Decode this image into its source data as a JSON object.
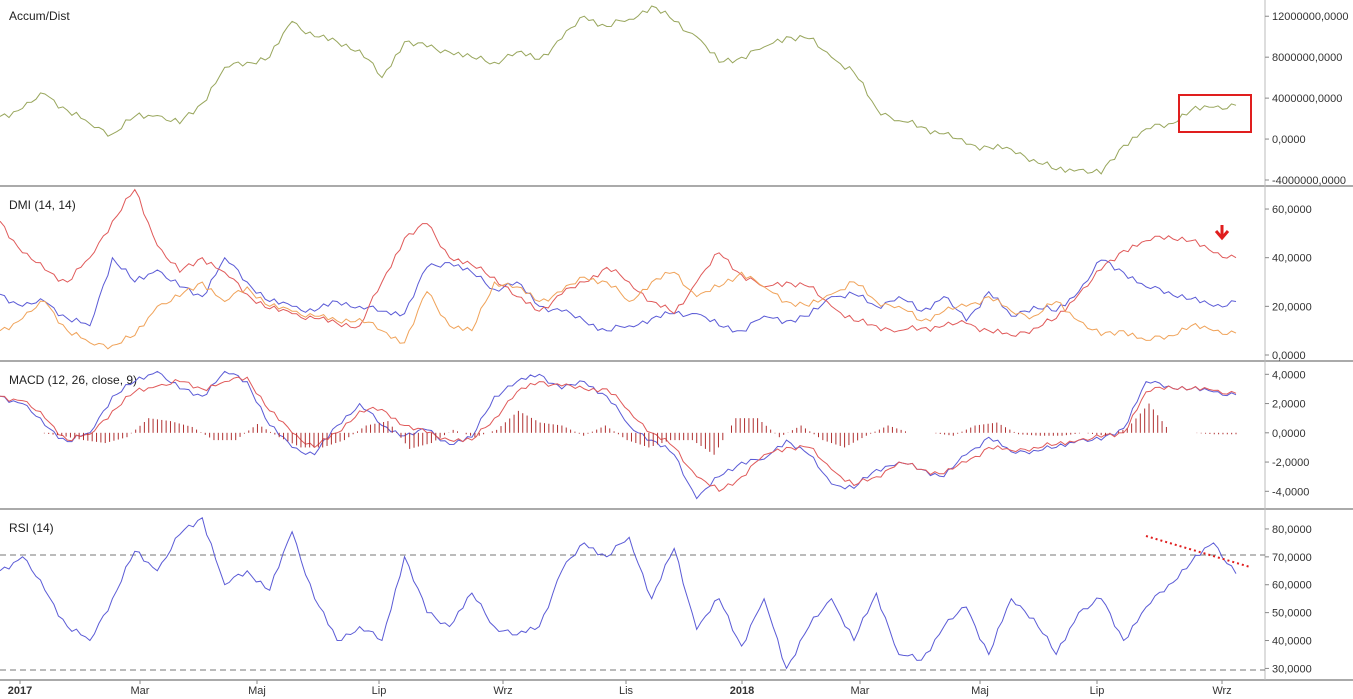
{
  "colors": {
    "accum": "#98a65c",
    "blue": "#5b5bd6",
    "red": "#e05a5a",
    "orange": "#f0a35a",
    "hist": "#b03030",
    "annotation": "#e01e1e",
    "separator": "#555555"
  },
  "x_labels": [
    {
      "text": "2017",
      "bold": true
    },
    {
      "text": "Mar",
      "bold": false
    },
    {
      "text": "Maj",
      "bold": false
    },
    {
      "text": "Lip",
      "bold": false
    },
    {
      "text": "Wrz",
      "bold": false
    },
    {
      "text": "Lis",
      "bold": false
    },
    {
      "text": "2018",
      "bold": true
    },
    {
      "text": "Mar",
      "bold": false
    },
    {
      "text": "Maj",
      "bold": false
    },
    {
      "text": "Lip",
      "bold": false
    },
    {
      "text": "Wrz",
      "bold": false
    }
  ],
  "chart_data": [
    {
      "type": "line",
      "title": "Accum/Dist",
      "ylim": [
        -4000000,
        13000000
      ],
      "yticks": [
        "12000000,0000",
        "8000000,0000",
        "4000000,0000",
        "0,0000",
        "-4000000,0000"
      ],
      "ytick_values": [
        12000000,
        8000000,
        4000000,
        0,
        -4000000
      ],
      "series": [
        {
          "color": "accum",
          "values": [
            2200000,
            3000000,
            4400000,
            2800000,
            1500000,
            500000,
            2200000,
            2300000,
            1500000,
            3500000,
            7000000,
            7500000,
            8000000,
            11500000,
            10000000,
            9500000,
            8700000,
            6000000,
            9500000,
            9000000,
            8500000,
            8000000,
            7500000,
            8500000,
            7800000,
            9800000,
            12000000,
            11000000,
            11700000,
            13000000,
            11500000,
            10000000,
            7500000,
            8000000,
            9000000,
            10000000,
            9800000,
            8000000,
            6500000,
            3000000,
            1800000,
            1200000,
            500000,
            -500000,
            -800000,
            -1000000,
            -2000000,
            -3000000,
            -3000000,
            -3400000,
            -600000,
            1000000,
            1500000,
            2800000,
            3100000,
            3300000
          ]
        }
      ]
    },
    {
      "type": "line",
      "title": "DMI (14, 14)",
      "ylim": [
        0,
        67000
      ],
      "yticks": [
        "60,0000",
        "40,0000",
        "20,0000",
        "0,0000"
      ],
      "ytick_values": [
        60000,
        40000,
        20000,
        0
      ],
      "series": [
        {
          "color": "blue",
          "values": [
            25000,
            20000,
            22000,
            15000,
            12000,
            40000,
            30000,
            35000,
            28000,
            24000,
            40000,
            30000,
            22000,
            20000,
            18000,
            22000,
            20000,
            18000,
            17000,
            36000,
            38000,
            34000,
            27000,
            30000,
            20000,
            18000,
            14000,
            10000,
            12000,
            15000,
            17000,
            17000,
            12000,
            10000,
            16000,
            14000,
            16000,
            24000,
            25000,
            20000,
            24000,
            18000,
            24000,
            14000,
            26000,
            16000,
            20000,
            18000,
            26000,
            39000,
            34000,
            28000,
            26000,
            23000,
            20000,
            22000
          ]
        },
        {
          "color": "red",
          "values": [
            55000,
            42000,
            35000,
            30000,
            40000,
            55000,
            68000,
            45000,
            34000,
            40000,
            34000,
            25000,
            19000,
            17000,
            15000,
            13000,
            12000,
            30000,
            48000,
            54000,
            40000,
            37000,
            32000,
            24000,
            18000,
            25000,
            30000,
            36000,
            30000,
            22000,
            17000,
            30000,
            42000,
            33000,
            28000,
            30000,
            28000,
            20000,
            14000,
            12000,
            10000,
            11000,
            12000,
            13000,
            10000,
            8000,
            11000,
            15000,
            25000,
            35000,
            43000,
            47000,
            49000,
            47000,
            42000,
            40000
          ]
        },
        {
          "color": "orange",
          "values": [
            10000,
            15000,
            22000,
            10000,
            5000,
            4000,
            8000,
            20000,
            24000,
            30000,
            22000,
            28000,
            20000,
            18000,
            16000,
            14000,
            15000,
            10000,
            5000,
            26000,
            12000,
            10000,
            30000,
            28000,
            22000,
            26000,
            32000,
            30000,
            22000,
            30000,
            34000,
            24000,
            28000,
            34000,
            28000,
            22000,
            20000,
            25000,
            30000,
            22000,
            20000,
            14000,
            18000,
            20000,
            24000,
            18000,
            16000,
            22000,
            14000,
            8000,
            10000,
            6000,
            8000,
            12000,
            10000,
            9000
          ]
        }
      ]
    },
    {
      "type": "line",
      "title": "MACD (12, 26, close, 9)",
      "ylim": [
        -4800,
        4500
      ],
      "yticks": [
        "4,0000",
        "2,0000",
        "0,0000",
        "-2,0000",
        "-4,0000"
      ],
      "ytick_values": [
        4000,
        2000,
        0,
        -2000,
        -4000
      ],
      "series": [
        {
          "color": "blue",
          "values": [
            2500,
            2000,
            500,
            -600,
            0,
            2500,
            3500,
            4200,
            3000,
            2500,
            4200,
            3500,
            500,
            -1000,
            -1500,
            500,
            2000,
            500,
            -200,
            200,
            -800,
            -300,
            2500,
            3500,
            4000,
            3000,
            3500,
            2500,
            500,
            -500,
            -1500,
            -4500,
            -3000,
            -2000,
            -1800,
            -500,
            -1500,
            -3500,
            -3800,
            -2500,
            -2000,
            -2500,
            -3000,
            -1500,
            -300,
            -1300,
            -1200,
            -1000,
            -500,
            -500,
            300,
            3500,
            3200,
            3000,
            2800,
            2600
          ]
        },
        {
          "color": "red",
          "values": [
            2500,
            2200,
            1000,
            -500,
            -100,
            1500,
            2800,
            3200,
            3500,
            3000,
            3500,
            3800,
            1500,
            0,
            -1000,
            0,
            1500,
            1600,
            500,
            0,
            -500,
            -500,
            1000,
            2800,
            3500,
            3200,
            3000,
            3000,
            1500,
            0,
            -1000,
            -3000,
            -4000,
            -3000,
            -1500,
            -1000,
            -1000,
            -2500,
            -3600,
            -3000,
            -2000,
            -2500,
            -2800,
            -2000,
            -1000,
            -1200,
            -1000,
            -800,
            -500,
            -300,
            0,
            2800,
            3200,
            3000,
            2900,
            2700
          ]
        },
        {
          "color": "hist",
          "kind": "histogram",
          "values": [
            0,
            -200,
            -500,
            -700,
            -300,
            1000,
            800,
            400,
            -500,
            -500,
            600,
            -300,
            -1000,
            -1000,
            -500,
            500,
            800,
            -1100,
            -700,
            200,
            -300,
            200,
            1500,
            700,
            500,
            -200,
            500,
            -500,
            -1000,
            -500,
            -500,
            -1500,
            1000,
            1000,
            -300,
            500,
            -500,
            -1000,
            -200,
            500,
            0,
            0,
            -200,
            500,
            700,
            -100,
            -200,
            -200,
            0,
            -200,
            300,
            2000,
            0,
            0,
            -100,
            -100
          ]
        }
      ]
    },
    {
      "type": "line",
      "title": "RSI (14)",
      "ylim": [
        28000,
        85000
      ],
      "yticks": [
        "80,0000",
        "70,0000",
        "60,0000",
        "50,0000",
        "40,0000",
        "30,0000"
      ],
      "ytick_values": [
        80000,
        70000,
        60000,
        50000,
        40000,
        30000
      ],
      "series": [
        {
          "color": "blue",
          "values": [
            65000,
            70000,
            58000,
            45000,
            40000,
            55000,
            72000,
            65000,
            78000,
            84000,
            60000,
            65000,
            58000,
            79000,
            55000,
            40000,
            45000,
            40000,
            70000,
            50000,
            45000,
            57000,
            45000,
            42000,
            45000,
            65000,
            75000,
            70000,
            77000,
            55000,
            73000,
            44000,
            55000,
            38000,
            55000,
            30000,
            45000,
            55000,
            40000,
            57000,
            35000,
            33000,
            45000,
            52000,
            35000,
            55000,
            48000,
            35000,
            50000,
            55000,
            40000,
            52000,
            60000,
            68000,
            75000,
            64000
          ]
        }
      ]
    }
  ]
}
